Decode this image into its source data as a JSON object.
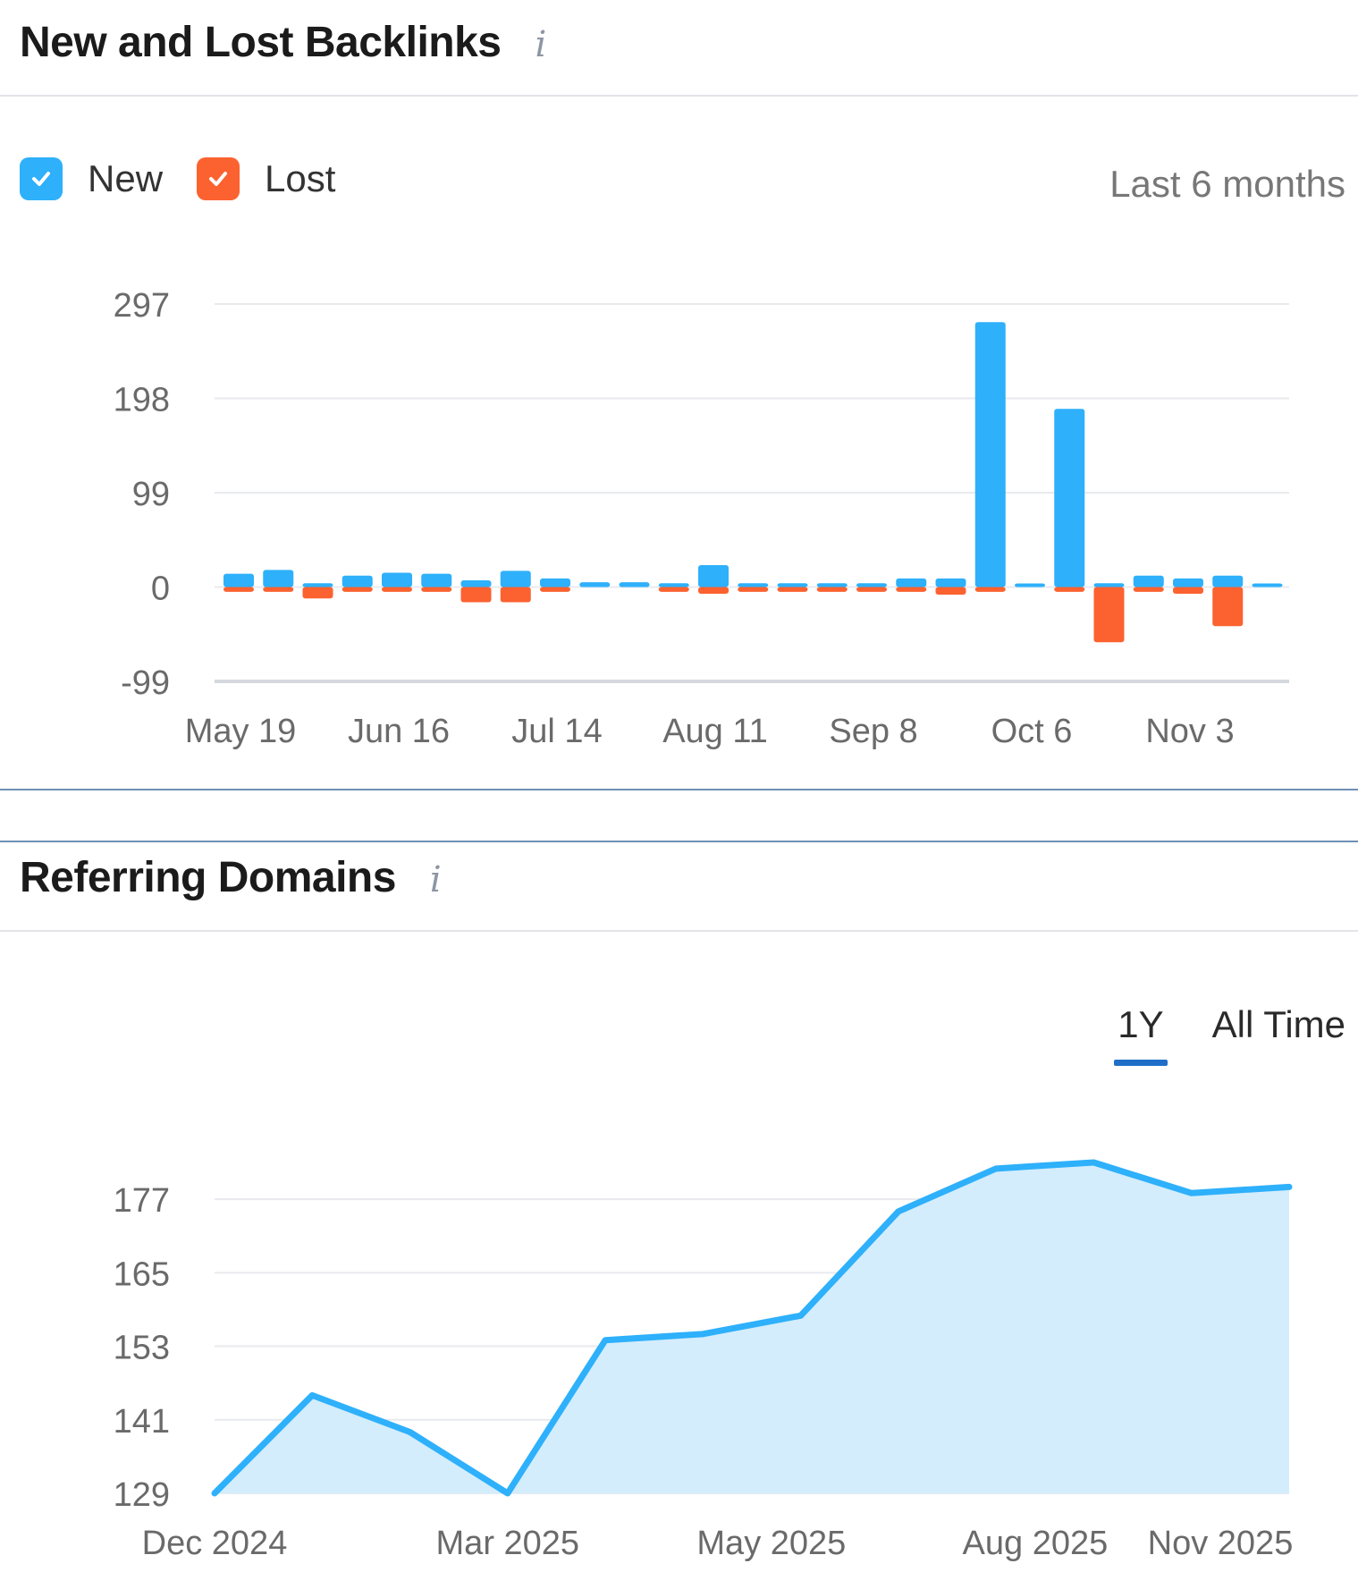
{
  "backlinks_panel": {
    "title": "New and Lost Backlinks",
    "info_glyph": "i",
    "legend": [
      {
        "label": "New",
        "color": "#2eb0fb"
      },
      {
        "label": "Lost",
        "color": "#fb6230"
      }
    ],
    "range_label": "Last 6 months"
  },
  "domains_panel": {
    "title": "Referring Domains",
    "info_glyph": "i",
    "tabs": [
      {
        "label": "1Y",
        "active": true
      },
      {
        "label": "All Time",
        "active": false
      }
    ]
  },
  "chart_data": [
    {
      "type": "bar",
      "title": "New and Lost Backlinks",
      "ylim": [
        -99,
        297
      ],
      "yticks": [
        "297",
        "198",
        "99",
        "0",
        "-99"
      ],
      "xtick_labels": [
        "May 19",
        "Jun 16",
        "Jul 14",
        "Aug 11",
        "Sep 8",
        "Oct 6",
        "Nov 3"
      ],
      "xtick_indices": [
        0,
        4,
        8,
        12,
        16,
        20,
        24
      ],
      "series": [
        {
          "name": "New",
          "color": "#2eb0fb",
          "values": [
            14,
            18,
            4,
            12,
            15,
            14,
            7,
            17,
            9,
            5,
            5,
            4,
            23,
            4,
            4,
            4,
            4,
            9,
            9,
            278,
            3,
            187,
            4,
            12,
            9,
            12,
            2
          ]
        },
        {
          "name": "Lost",
          "color": "#fb6230",
          "values": [
            -5,
            -5,
            -12,
            -5,
            -5,
            -5,
            -16,
            -16,
            -5,
            0,
            0,
            -5,
            -7,
            -5,
            -5,
            -5,
            -5,
            -5,
            -8,
            -5,
            0,
            -5,
            -58,
            -5,
            -7,
            -41,
            0
          ]
        }
      ]
    },
    {
      "type": "area",
      "title": "Referring Domains",
      "ylim": [
        129,
        183
      ],
      "yticks": [
        177,
        165,
        153,
        141,
        129
      ],
      "xtick_labels": [
        "Dec 2024",
        "Mar 2025",
        "May 2025",
        "Aug 2025",
        "Nov 2025"
      ],
      "xtick_indices": [
        0,
        3,
        5.7,
        8.4,
        11.1
      ],
      "series": [
        {
          "name": "Referring Domains",
          "color": "#2eb0fb",
          "values": [
            129,
            145,
            139,
            129,
            154,
            155,
            158,
            175,
            182,
            183,
            178,
            179
          ]
        }
      ]
    }
  ]
}
